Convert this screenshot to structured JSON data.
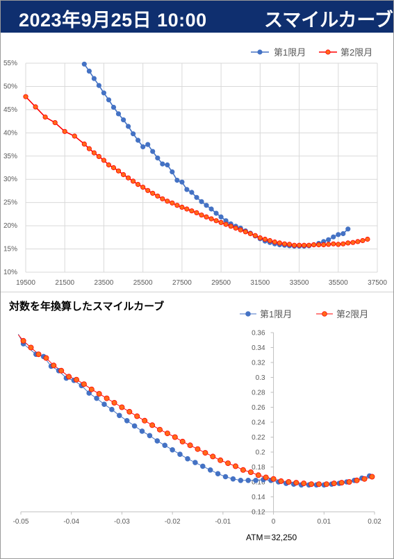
{
  "header": {
    "datetime": "2023年9月25日 10:00",
    "title": "スマイルカーブ"
  },
  "colors": {
    "header_bg": "#0f2f6f",
    "series1": "#4472c4",
    "series2_line": "#ff0000",
    "series2_marker": "#ff6a1a"
  },
  "chart_data": [
    {
      "type": "line",
      "title": "",
      "xlabel": "",
      "ylabel": "",
      "xlim": [
        19500,
        37500
      ],
      "ylim": [
        10,
        55
      ],
      "x_ticks": [
        "19500",
        "21500",
        "23500",
        "25500",
        "27500",
        "29500",
        "31500",
        "33500",
        "35500",
        "37500"
      ],
      "y_ticks": [
        "10%",
        "15%",
        "20%",
        "25%",
        "30%",
        "35%",
        "40%",
        "45%",
        "50%",
        "55%"
      ],
      "grid": true,
      "legend": "top-right",
      "series": [
        {
          "name": "第1限月",
          "x": [
            22500,
            22750,
            23000,
            23250,
            23500,
            23750,
            24000,
            24250,
            24500,
            24750,
            25000,
            25250,
            25500,
            25750,
            26000,
            26250,
            26500,
            26750,
            27000,
            27250,
            27500,
            27750,
            28000,
            28250,
            28500,
            28750,
            29000,
            29250,
            29500,
            29750,
            30000,
            30250,
            30500,
            30750,
            31000,
            31250,
            31500,
            31750,
            32000,
            32250,
            32500,
            32750,
            33000,
            33250,
            33500,
            33750,
            34000,
            34250,
            34500,
            34750,
            35000,
            35250,
            35500,
            35750,
            36000
          ],
          "values": [
            54.8,
            53.3,
            51.7,
            50.2,
            48.6,
            47.1,
            45.5,
            44.1,
            42.8,
            41.4,
            39.8,
            38.4,
            37.0,
            37.5,
            36.0,
            34.6,
            33.3,
            33.1,
            31.6,
            29.8,
            29.4,
            27.8,
            27.2,
            26.1,
            25.2,
            24.4,
            23.6,
            22.7,
            21.9,
            21.1,
            20.4,
            19.9,
            19.5,
            18.9,
            18.4,
            17.8,
            17.2,
            16.7,
            16.4,
            16.1,
            15.9,
            15.8,
            15.7,
            15.6,
            15.6,
            15.6,
            15.7,
            15.9,
            16.2,
            16.6,
            17.0,
            17.6,
            18.1,
            18.3,
            19.3
          ]
        },
        {
          "name": "第2限月",
          "x": [
            19500,
            20000,
            20500,
            21000,
            21500,
            22000,
            22500,
            22750,
            23000,
            23250,
            23500,
            23750,
            24000,
            24250,
            24500,
            24750,
            25000,
            25250,
            25500,
            25750,
            26000,
            26250,
            26500,
            26750,
            27000,
            27250,
            27500,
            27750,
            28000,
            28250,
            28500,
            28750,
            29000,
            29250,
            29500,
            29750,
            30000,
            30250,
            30500,
            30750,
            31000,
            31250,
            31500,
            31750,
            32000,
            32250,
            32500,
            32750,
            33000,
            33250,
            33500,
            33750,
            34000,
            34250,
            34500,
            34750,
            35000,
            35250,
            35500,
            35750,
            36000,
            36250,
            36500,
            36750,
            37000
          ],
          "values": [
            47.8,
            45.6,
            43.4,
            42.2,
            40.3,
            39.3,
            37.6,
            36.6,
            35.7,
            34.9,
            34.1,
            33.1,
            32.5,
            31.8,
            31.0,
            30.3,
            29.6,
            28.9,
            28.3,
            27.6,
            27.0,
            26.4,
            25.8,
            25.3,
            24.9,
            24.4,
            24.0,
            23.6,
            23.2,
            22.8,
            22.3,
            21.9,
            21.5,
            21.1,
            20.7,
            20.3,
            19.9,
            19.5,
            19.1,
            18.7,
            18.3,
            17.9,
            17.4,
            17.1,
            16.8,
            16.5,
            16.3,
            16.1,
            16.0,
            15.8,
            15.8,
            15.8,
            15.8,
            15.9,
            15.9,
            15.9,
            16.0,
            16.1,
            16.0,
            16.1,
            16.3,
            16.4,
            16.6,
            16.8,
            17.1
          ]
        }
      ]
    },
    {
      "type": "line",
      "title": "対数を年換算したスマイルカーブ",
      "xlabel": "",
      "ylabel": "",
      "xlim": [
        -0.05,
        0.02
      ],
      "ylim": [
        0.12,
        0.36
      ],
      "x_ticks": [
        "-0.05",
        "-0.04",
        "-0.03",
        "-0.02",
        "-0.01",
        "0",
        "0.01",
        "0.02"
      ],
      "y_ticks": [
        "0.12",
        "0.14",
        "0.16",
        "0.18",
        "0.2",
        "0.22",
        "0.24",
        "0.26",
        "0.28",
        "0.3",
        "0.32",
        "0.34",
        "0.36"
      ],
      "grid": false,
      "legend": "top-right",
      "annotation": "ATM＝32,250",
      "series": [
        {
          "name": "第1限月",
          "x": [
            -0.0495,
            -0.047,
            -0.0455,
            -0.044,
            -0.0425,
            -0.041,
            -0.0395,
            -0.038,
            -0.0365,
            -0.035,
            -0.0335,
            -0.032,
            -0.0305,
            -0.029,
            -0.0275,
            -0.026,
            -0.0245,
            -0.023,
            -0.0215,
            -0.02,
            -0.0185,
            -0.017,
            -0.0155,
            -0.014,
            -0.0125,
            -0.011,
            -0.0095,
            -0.008,
            -0.0065,
            -0.005,
            -0.0035,
            -0.002,
            -0.0005,
            0.001,
            0.0025,
            0.004,
            0.0055,
            0.007,
            0.0085,
            0.01,
            0.0115,
            0.013,
            0.0145,
            0.016,
            0.0175,
            0.019
          ],
          "values": [
            0.345,
            0.331,
            0.328,
            0.315,
            0.309,
            0.299,
            0.296,
            0.289,
            0.279,
            0.272,
            0.264,
            0.257,
            0.249,
            0.242,
            0.235,
            0.228,
            0.222,
            0.215,
            0.209,
            0.203,
            0.197,
            0.191,
            0.186,
            0.181,
            0.176,
            0.171,
            0.167,
            0.164,
            0.162,
            0.162,
            0.162,
            0.163,
            0.162,
            0.16,
            0.158,
            0.157,
            0.156,
            0.156,
            0.156,
            0.156,
            0.157,
            0.158,
            0.16,
            0.162,
            0.165,
            0.168
          ]
        },
        {
          "name": "第2限月",
          "x": [
            -0.0495,
            -0.048,
            -0.0465,
            -0.045,
            -0.0435,
            -0.042,
            -0.0405,
            -0.039,
            -0.0375,
            -0.036,
            -0.0345,
            -0.033,
            -0.0315,
            -0.03,
            -0.0285,
            -0.027,
            -0.0255,
            -0.024,
            -0.0225,
            -0.021,
            -0.0195,
            -0.018,
            -0.0165,
            -0.015,
            -0.0135,
            -0.012,
            -0.0105,
            -0.009,
            -0.0075,
            -0.006,
            -0.0045,
            -0.003,
            -0.0015,
            0.0,
            0.0015,
            0.003,
            0.0045,
            0.006,
            0.0075,
            0.009,
            0.0105,
            0.012,
            0.0135,
            0.015,
            0.0165,
            0.018,
            0.0195
          ],
          "values": [
            0.349,
            0.34,
            0.331,
            0.326,
            0.316,
            0.309,
            0.301,
            0.297,
            0.291,
            0.284,
            0.278,
            0.272,
            0.266,
            0.26,
            0.254,
            0.248,
            0.242,
            0.236,
            0.23,
            0.225,
            0.22,
            0.214,
            0.209,
            0.204,
            0.199,
            0.194,
            0.189,
            0.185,
            0.181,
            0.176,
            0.173,
            0.169,
            0.166,
            0.164,
            0.161,
            0.16,
            0.159,
            0.158,
            0.157,
            0.157,
            0.157,
            0.158,
            0.159,
            0.16,
            0.162,
            0.164,
            0.167
          ]
        }
      ]
    }
  ]
}
